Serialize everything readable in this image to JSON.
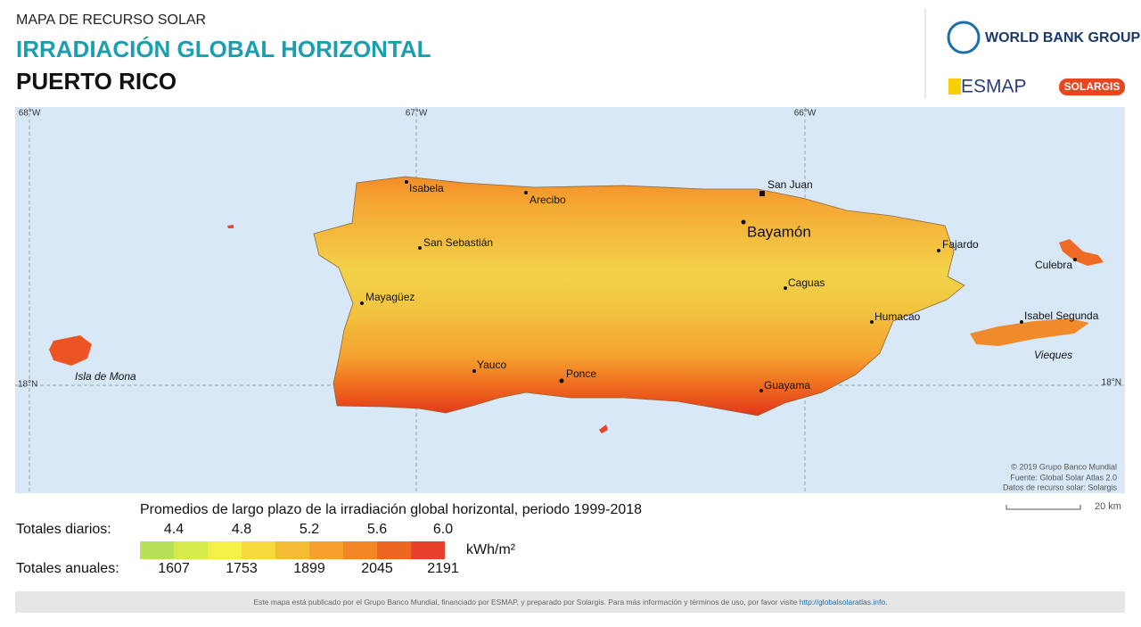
{
  "header": {
    "supertitle": "MAPA DE RECURSO SOLAR",
    "title": "IRRADIACIÓN GLOBAL HORIZONTAL",
    "country": "PUERTO RICO"
  },
  "logos": {
    "world_bank": "WORLD BANK GROUP",
    "esmap": "ESMAP",
    "solargis": "SOLARGIS"
  },
  "map": {
    "graticule": {
      "lon": [
        "68°W",
        "67°W",
        "66°W"
      ],
      "lat_left": "18°N",
      "lat_right": "18°N"
    },
    "places": [
      "San Juan",
      "Bayamón",
      "Isabela",
      "Arecibo",
      "San Sebastián",
      "Mayagüez",
      "Caguas",
      "Fajardo",
      "Culebra",
      "Humacao",
      "Isabel Segunda",
      "Yauco",
      "Ponce",
      "Guayama"
    ],
    "islands": [
      "Isla de Mona",
      "Vieques"
    ],
    "credits": [
      "© 2019 Grupo Banco Mundial",
      "Fuente: Global Solar Atlas 2.0",
      "Datos de recurso solar: Solargis"
    ],
    "scale": "20 km"
  },
  "legend": {
    "title": "Promedios de largo plazo de la irradiación global horizontal, periodo 1999-2018",
    "daily_label": "Totales diarios:",
    "daily_ticks": [
      "4.4",
      "4.8",
      "5.2",
      "5.6",
      "6.0"
    ],
    "unit": "kWh/m²",
    "annual_label": "Totales anuales:",
    "annual_ticks": [
      "1607",
      "1753",
      "1899",
      "2045",
      "2191"
    ]
  },
  "footer": {
    "text": "Este mapa está publicado por el Grupo Banco Mundial, financiado por ESMAP, y preparado por Solargis. Para más información y términos de uso, por favor visite ",
    "link": "http://globalsolaratlas.info",
    "end": "."
  }
}
